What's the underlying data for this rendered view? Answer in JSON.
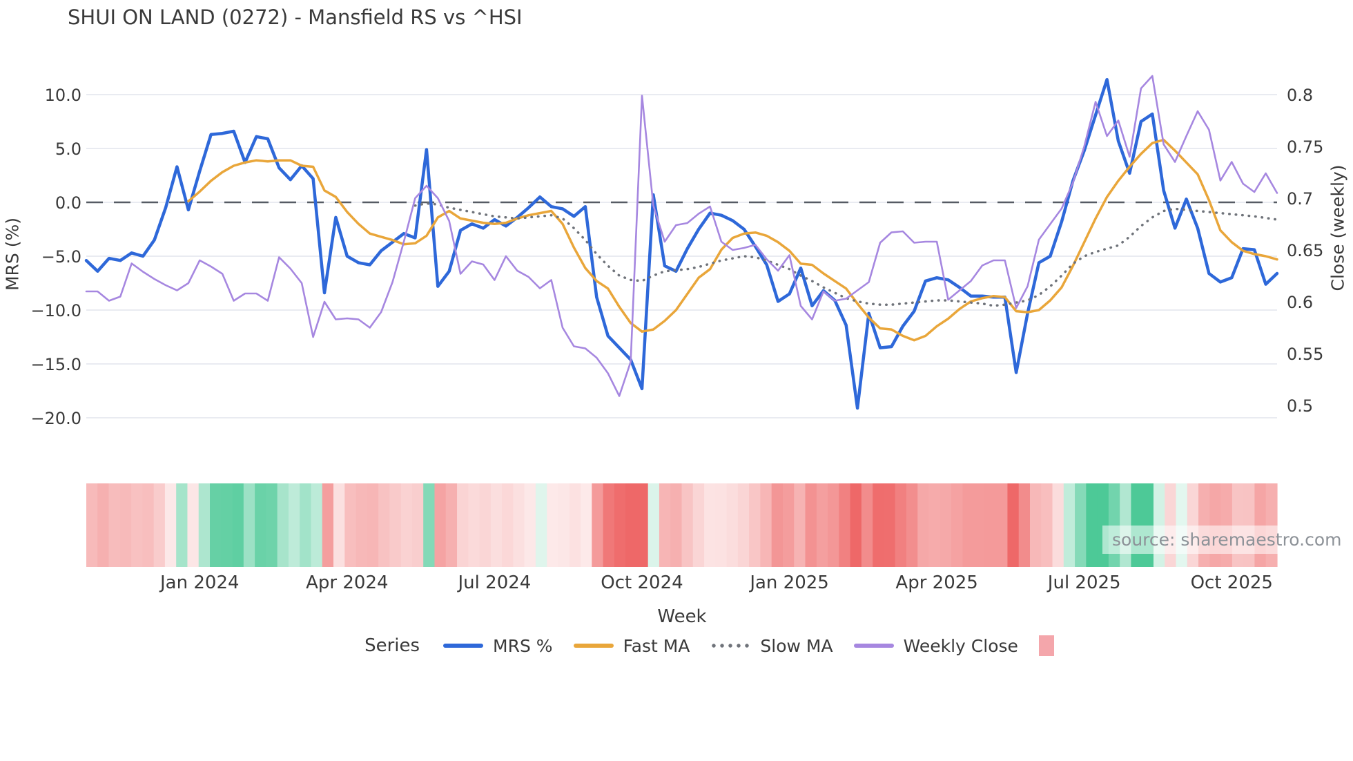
{
  "title": "SHUI ON LAND (0272) - Mansfield RS vs ^HSI",
  "source_note": "source: sharemaestro.com",
  "colors": {
    "mrs_line": "#2e68d9",
    "fast_ma_line": "#e9a63a",
    "slow_ma_line": "#6f737a",
    "weekly_close_line": "#a687e0",
    "zero_dash_line": "#565b64",
    "gridline": "#e9ebf1",
    "text": "#3a3a3a",
    "source_text": "#8d9298",
    "legend_patch": "#f4a6ab",
    "heatmap_positive_base": "#4dc997",
    "heatmap_negative_base": "#ee6868"
  },
  "axes": {
    "left": {
      "label": "MRS (%)",
      "ticks": [
        "10.0",
        "5.0",
        "0.0",
        "−5.0",
        "−10.0",
        "−15.0",
        "−20.0"
      ],
      "tick_values": [
        10,
        5,
        0,
        -5,
        -10,
        -15,
        -20
      ],
      "range": [
        -22,
        12.5
      ]
    },
    "right": {
      "label": "Close (weekly)",
      "ticks": [
        "0.8",
        "0.75",
        "0.7",
        "0.65",
        "0.6",
        "0.55",
        "0.5"
      ],
      "tick_values": [
        0.8,
        0.75,
        0.7,
        0.65,
        0.6,
        0.55,
        0.5
      ],
      "range": [
        0.49,
        0.82
      ]
    },
    "x": {
      "label": "Week",
      "ticks": [
        {
          "label": "Jan 2024",
          "week": 10
        },
        {
          "label": "Apr 2024",
          "week": 23
        },
        {
          "label": "Jul 2024",
          "week": 36
        },
        {
          "label": "Oct 2024",
          "week": 49
        },
        {
          "label": "Jan 2025",
          "week": 62
        },
        {
          "label": "Apr 2025",
          "week": 75
        },
        {
          "label": "Jul 2025",
          "week": 88
        },
        {
          "label": "Oct 2025",
          "week": 101
        }
      ]
    }
  },
  "legend": {
    "heading": "Series",
    "items": [
      {
        "label": "MRS %",
        "style": "solid",
        "color": "#2e68d9"
      },
      {
        "label": "Fast MA",
        "style": "solid",
        "color": "#e9a63a"
      },
      {
        "label": "Slow MA",
        "style": "dotted",
        "color": "#6f737a"
      },
      {
        "label": "Weekly Close",
        "style": "solid",
        "color": "#a687e0"
      },
      {
        "label": "",
        "style": "patch",
        "color": "#f4a6ab"
      }
    ]
  },
  "heatmap": {
    "description": "weekly strip below plot, red for negative MRS, green for positive MRS, intensity scales with magnitude",
    "based_on": "mrs_pct",
    "positive_base": "#4dc997",
    "negative_base": "#ee6868",
    "max_pos": 8.5,
    "max_neg": 16,
    "min_intensity": 0.12
  },
  "chart_data": {
    "type": "line",
    "title": "SHUI ON LAND (0272) - Mansfield RS vs ^HSI",
    "xlabel": "Week",
    "ylabel_left": "MRS (%)",
    "ylabel_right": "Close (weekly)",
    "n_points": 106,
    "x": "weekly index 0-105, ticks mark month starts",
    "grid": true,
    "legend_position": "bottom",
    "zero_reference_line": 0,
    "series": [
      {
        "name": "MRS %",
        "axis": "left",
        "style": "solid",
        "color": "#2e68d9",
        "width": 4.5,
        "values": [
          -5.4,
          -6.4,
          -5.2,
          -5.4,
          -4.7,
          -5.0,
          -3.5,
          -0.5,
          3.3,
          -0.7,
          2.9,
          6.3,
          6.4,
          6.6,
          3.7,
          6.1,
          5.9,
          3.2,
          2.1,
          3.4,
          2.2,
          -8.4,
          -1.4,
          -5.0,
          -5.6,
          -5.8,
          -4.5,
          -3.7,
          -2.9,
          -3.3,
          4.9,
          -7.8,
          -6.4,
          -2.6,
          -2.0,
          -2.4,
          -1.6,
          -2.2,
          -1.4,
          -0.5,
          0.5,
          -0.4,
          -0.6,
          -1.3,
          -0.4,
          -8.8,
          -12.4,
          -13.5,
          -14.6,
          -17.3,
          0.7,
          -5.9,
          -6.4,
          -4.3,
          -2.5,
          -1.0,
          -1.2,
          -1.7,
          -2.5,
          -4.1,
          -5.8,
          -9.2,
          -8.5,
          -6.1,
          -9.6,
          -8.2,
          -9.1,
          -11.4,
          -19.1,
          -10.3,
          -13.5,
          -13.4,
          -11.5,
          -10.1,
          -7.3,
          -7.0,
          -7.2,
          -7.9,
          -8.7,
          -8.7,
          -8.8,
          -8.8,
          -15.8,
          -10.3,
          -5.6,
          -5.0,
          -1.8,
          2.0,
          4.8,
          8.1,
          11.4,
          5.7,
          2.7,
          7.5,
          8.2,
          1.1,
          -2.4,
          0.3,
          -2.4,
          -6.6,
          -7.4,
          -7.0,
          -4.3,
          -4.4,
          -7.6,
          -6.6
        ]
      },
      {
        "name": "Fast MA",
        "axis": "left",
        "style": "solid",
        "color": "#e9a63a",
        "width": 3.5,
        "values": [
          null,
          null,
          null,
          null,
          null,
          null,
          null,
          null,
          null,
          0.1,
          1.0,
          2.0,
          2.8,
          3.4,
          3.7,
          3.9,
          3.8,
          3.9,
          3.9,
          3.4,
          3.3,
          1.1,
          0.5,
          -0.9,
          -2.0,
          -2.9,
          -3.2,
          -3.5,
          -3.9,
          -3.8,
          -3.1,
          -1.4,
          -0.8,
          -1.5,
          -1.7,
          -1.9,
          -2.0,
          -1.9,
          -1.5,
          -1.2,
          -1.0,
          -0.8,
          -2.0,
          -4.2,
          -6.1,
          -7.3,
          -8.0,
          -9.7,
          -11.2,
          -12.0,
          -11.8,
          -11.0,
          -10.0,
          -8.5,
          -7.0,
          -6.2,
          -4.4,
          -3.3,
          -2.9,
          -2.8,
          -3.1,
          -3.7,
          -4.5,
          -5.7,
          -5.8,
          -6.6,
          -7.3,
          -8.0,
          -9.4,
          -10.7,
          -11.7,
          -11.8,
          -12.4,
          -12.8,
          -12.4,
          -11.5,
          -10.8,
          -9.9,
          -9.2,
          -8.9,
          -8.7,
          -8.8,
          -10.1,
          -10.2,
          -10.0,
          -9.1,
          -7.9,
          -5.9,
          -3.7,
          -1.5,
          0.5,
          2.0,
          3.3,
          4.5,
          5.5,
          5.8,
          4.8,
          3.7,
          2.6,
          0.2,
          -2.6,
          -3.7,
          -4.5,
          -4.8,
          -5.0,
          -5.3
        ]
      },
      {
        "name": "Slow MA",
        "axis": "left",
        "style": "dotted",
        "color": "#6f737a",
        "width": 3.5,
        "values": [
          null,
          null,
          null,
          null,
          null,
          null,
          null,
          null,
          null,
          null,
          null,
          null,
          null,
          null,
          null,
          null,
          null,
          null,
          null,
          null,
          null,
          null,
          null,
          null,
          null,
          null,
          null,
          null,
          null,
          -0.3,
          -0.1,
          -0.2,
          -0.5,
          -0.7,
          -0.9,
          -1.1,
          -1.3,
          -1.4,
          -1.5,
          -1.4,
          -1.3,
          -1.2,
          -1.5,
          -2.4,
          -3.5,
          -4.8,
          -5.9,
          -6.8,
          -7.2,
          -7.3,
          -6.8,
          -6.4,
          -6.3,
          -6.2,
          -6.0,
          -5.7,
          -5.4,
          -5.2,
          -5.0,
          -5.1,
          -5.4,
          -5.8,
          -6.2,
          -6.8,
          -7.3,
          -7.9,
          -8.4,
          -8.9,
          -9.2,
          -9.4,
          -9.5,
          -9.5,
          -9.4,
          -9.3,
          -9.2,
          -9.1,
          -9.1,
          -9.2,
          -9.3,
          -9.4,
          -9.6,
          -9.5,
          -9.3,
          -9.1,
          -8.6,
          -7.8,
          -6.8,
          -5.7,
          -5.0,
          -4.6,
          -4.3,
          -4.0,
          -3.2,
          -2.2,
          -1.4,
          -0.8,
          -0.6,
          -0.7,
          -0.8,
          -0.9,
          -1.0,
          -1.1,
          -1.2,
          -1.3,
          -1.45,
          -1.6
        ]
      },
      {
        "name": "Weekly Close",
        "axis": "right",
        "style": "solid",
        "color": "#a687e0",
        "width": 2.6,
        "values": [
          0.61,
          0.61,
          0.601,
          0.605,
          0.637,
          0.629,
          0.622,
          0.616,
          0.611,
          0.618,
          0.64,
          0.634,
          0.627,
          0.601,
          0.608,
          0.608,
          0.601,
          0.643,
          0.632,
          0.618,
          0.566,
          0.6,
          0.583,
          0.584,
          0.583,
          0.575,
          0.59,
          0.619,
          0.658,
          0.7,
          0.712,
          0.7,
          0.678,
          0.627,
          0.639,
          0.636,
          0.621,
          0.644,
          0.63,
          0.624,
          0.613,
          0.621,
          0.575,
          0.557,
          0.555,
          0.546,
          0.531,
          0.509,
          0.542,
          0.799,
          0.693,
          0.658,
          0.674,
          0.676,
          0.685,
          0.692,
          0.658,
          0.65,
          0.652,
          0.655,
          0.641,
          0.63,
          0.645,
          0.596,
          0.583,
          0.61,
          0.601,
          0.603,
          0.611,
          0.619,
          0.657,
          0.667,
          0.668,
          0.657,
          0.658,
          0.658,
          0.602,
          0.611,
          0.62,
          0.635,
          0.64,
          0.64,
          0.594,
          0.615,
          0.66,
          0.675,
          0.69,
          0.715,
          0.75,
          0.793,
          0.76,
          0.775,
          0.74,
          0.806,
          0.818,
          0.752,
          0.735,
          0.76,
          0.784,
          0.766,
          0.717,
          0.735,
          0.714,
          0.706,
          0.724,
          0.705
        ]
      }
    ]
  }
}
